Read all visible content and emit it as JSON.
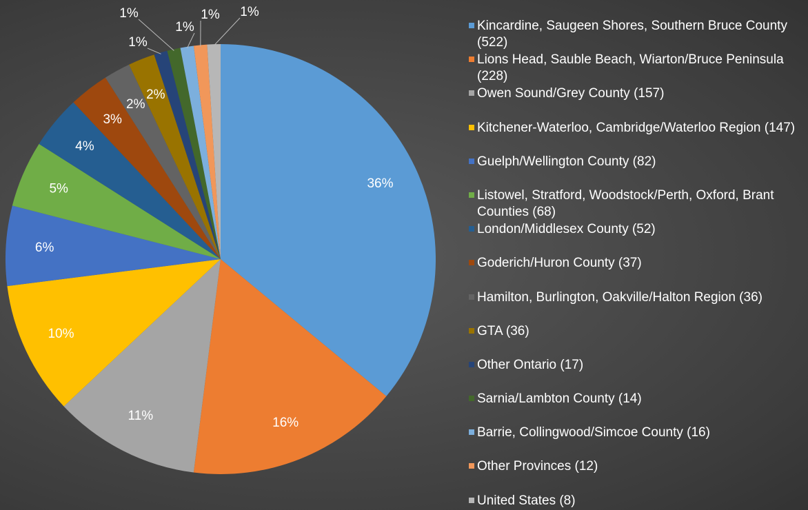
{
  "chart_data": {
    "type": "pie",
    "series": [
      {
        "name": "Kincardine, Saugeen Shores, Southern Bruce County (522)",
        "color": "#5b9bd5"
      },
      {
        "name": "Lions Head, Sauble Beach, Wiarton/Bruce Peninsula (228)",
        "color": "#ed7d31"
      },
      {
        "name": "Owen Sound/Grey County (157)",
        "color": "#a5a5a5"
      },
      {
        "name": "Kitchener-Waterloo, Cambridge/Waterloo Region (147)",
        "color": "#ffc000"
      },
      {
        "name": "Guelph/Wellington County (82)",
        "color": "#4472c4"
      },
      {
        "name": "Listowel, Stratford, Woodstock/Perth, Oxford, Brant Counties (68)",
        "color": "#70ad47"
      },
      {
        "name": "London/Middlesex County (52)",
        "color": "#255e91"
      },
      {
        "name": "Goderich/Huron County (37)",
        "color": "#9e480e"
      },
      {
        "name": "Hamilton, Burlington, Oakville/Halton Region (36)",
        "color": "#636363"
      },
      {
        "name": "GTA (36)",
        "color": "#997300"
      },
      {
        "name": "Other Ontario (17)",
        "color": "#264478"
      },
      {
        "name": "Sarnia/Lambton County (14)",
        "color": "#43682b"
      },
      {
        "name": "Barrie, Collingwood/Simcoe County (16)",
        "color": "#7cafdd"
      },
      {
        "name": "Other Provinces (12)",
        "color": "#f1975a"
      },
      {
        "name": "United States  (8)",
        "color": "#b7b7b7"
      }
    ],
    "values": [
      36,
      16,
      11,
      10,
      6,
      5,
      4,
      3,
      2,
      2,
      1,
      1,
      1,
      1,
      1
    ],
    "value_labels": [
      "36%",
      "16%",
      "11%",
      "10%",
      "6%",
      "5%",
      "4%",
      "3%",
      "2%",
      "2%",
      "1%",
      "1%",
      "1%",
      "1%",
      "1%"
    ],
    "legend": "right"
  }
}
